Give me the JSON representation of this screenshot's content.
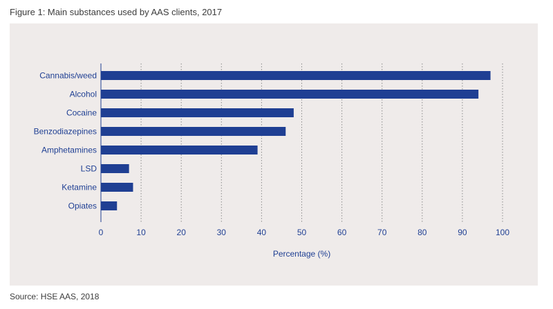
{
  "figure_title": "Figure 1: Main substances used by AAS clients, 2017",
  "source": "Source: HSE AAS, 2018",
  "colors": {
    "bar": "#1f3f93",
    "panel_background": "#efebea",
    "gridline": "#8a8a8a",
    "axis": "#1f3f93"
  },
  "chart_data": {
    "type": "bar",
    "orientation": "horizontal",
    "categories": [
      "Cannabis/weed",
      "Alcohol",
      "Cocaine",
      "Benzodiazepines",
      "Amphetamines",
      "LSD",
      "Ketamine",
      "Opiates"
    ],
    "values": [
      97,
      94,
      48,
      46,
      39,
      7,
      8,
      4
    ],
    "xlabel": "Percentage (%)",
    "ylabel": "",
    "xlim": [
      0,
      100
    ],
    "xticks": [
      0,
      10,
      20,
      30,
      40,
      50,
      60,
      70,
      80,
      90,
      100
    ],
    "grid": "vertical dotted",
    "legend": "none"
  }
}
